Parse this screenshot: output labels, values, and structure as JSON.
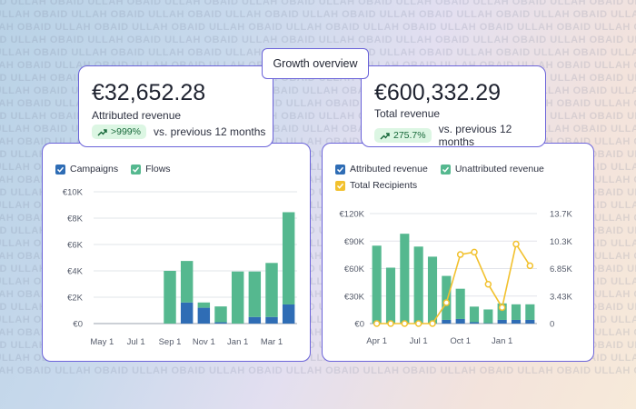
{
  "watermark_text": "OBAID ULLAH",
  "header": {
    "title": "Growth overview"
  },
  "kpi_left": {
    "value": "€32,652.28",
    "label": "Attributed revenue",
    "change": ">999%",
    "comparison": "vs. previous 12 months"
  },
  "kpi_right": {
    "value": "€600,332.29",
    "label": "Total revenue",
    "change": "275.7%",
    "comparison": "vs. previous 12 months"
  },
  "colors": {
    "accent_border": "#6b63d9",
    "blue": "#2f6db5",
    "green": "#55b88f",
    "yellow": "#f2c12e",
    "badge_bg": "#dcf6e3",
    "badge_text": "#17683a"
  },
  "chart_data": [
    {
      "type": "bar",
      "stacked": true,
      "legend": [
        "Campaigns",
        "Flows"
      ],
      "legend_position": "top-left",
      "grid": true,
      "categories": [
        "May 1",
        "Jun 1",
        "Jul 1",
        "Aug 1",
        "Sep 1",
        "Oct 1",
        "Nov 1",
        "Dec 1",
        "Jan 1",
        "Feb 1",
        "Mar 1",
        "Apr 1"
      ],
      "x_tick_labels": [
        "May 1",
        "Jul 1",
        "Sep 1",
        "Nov 1",
        "Jan 1",
        "Mar 1"
      ],
      "y_tick_labels": [
        "€0",
        "€2K",
        "€4K",
        "€6K",
        "€8K",
        "€10K"
      ],
      "ylim": [
        0,
        10000
      ],
      "series": [
        {
          "name": "Campaigns",
          "values": [
            0,
            0,
            0,
            0,
            0,
            1600,
            1200,
            100,
            0,
            500,
            500,
            1450
          ]
        },
        {
          "name": "Flows",
          "values": [
            0,
            0,
            0,
            0,
            4000,
            3150,
            400,
            1200,
            3950,
            3450,
            4100,
            7000
          ]
        }
      ]
    },
    {
      "type": "bar",
      "stacked": true,
      "legend": [
        "Attributed revenue",
        "Unattributed revenue",
        "Total Recipients"
      ],
      "legend_position": "top-left",
      "grid": true,
      "categories": [
        "Apr 1",
        "May 1",
        "Jun 1",
        "Jul 1",
        "Aug 1",
        "Sep 1",
        "Oct 1",
        "Nov 1",
        "Dec 1",
        "Jan 1",
        "Feb 1",
        "Mar 1"
      ],
      "x_tick_labels": [
        "Apr 1",
        "Jul 1",
        "Oct 1",
        "Jan 1"
      ],
      "y_tick_labels": [
        "€0",
        "€30K",
        "€60K",
        "€90K",
        "€120K"
      ],
      "y2_tick_labels": [
        "0",
        "3.43K",
        "6.85K",
        "10.3K",
        "13.7K"
      ],
      "ylim": [
        0,
        120000
      ],
      "y2lim": [
        0,
        13700
      ],
      "series": [
        {
          "name": "Attributed revenue",
          "type": "bar",
          "values": [
            0,
            0,
            0,
            0,
            0,
            4000,
            5000,
            1500,
            400,
            4000,
            4000,
            4000
          ]
        },
        {
          "name": "Unattributed revenue",
          "type": "bar",
          "values": [
            85000,
            61000,
            98000,
            84000,
            73000,
            48000,
            33000,
            17000,
            15000,
            18000,
            17000,
            17000
          ]
        },
        {
          "name": "Total Recipients",
          "type": "line",
          "values": [
            0,
            0,
            0,
            0,
            0,
            2600,
            8600,
            8900,
            4900,
            2000,
            9900,
            7200
          ]
        }
      ]
    }
  ]
}
